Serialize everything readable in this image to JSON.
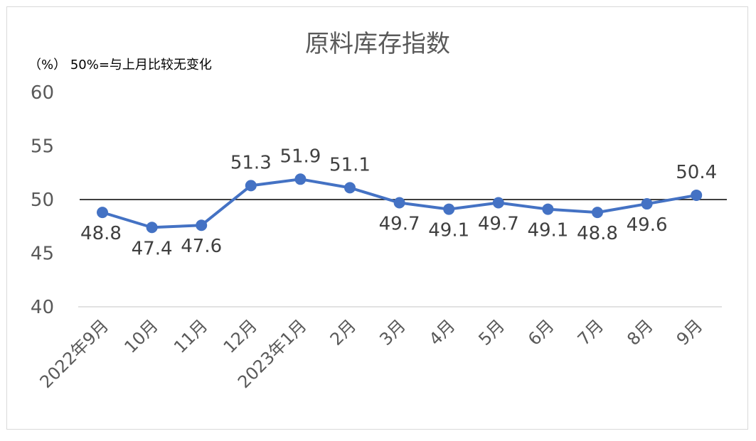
{
  "chart_data": {
    "type": "line",
    "title": "原料库存指数",
    "unit_note": "（%）  50%=与上月比较无变化",
    "categories": [
      "2022年9月",
      "10月",
      "11月",
      "12月",
      "2023年1月",
      "2月",
      "3月",
      "4月",
      "5月",
      "6月",
      "7月",
      "8月",
      "9月"
    ],
    "series": [
      {
        "values": [
          48.8,
          47.4,
          47.6,
          51.3,
          51.9,
          51.1,
          49.7,
          49.1,
          49.7,
          49.1,
          48.8,
          49.6,
          50.4
        ]
      }
    ],
    "data_labels": [
      "48.8",
      "47.4",
      "47.6",
      "51.3",
      "51.9",
      "51.1",
      "49.7",
      "49.1",
      "49.7",
      "49.1",
      "48.8",
      "49.6",
      "50.4"
    ],
    "ylim": [
      40,
      60
    ],
    "yticks": [
      "40",
      "45",
      "50",
      "55",
      "60"
    ],
    "reference_line": 50,
    "grid": false,
    "legend": "none",
    "colors": {
      "series": "#4472c4",
      "reference": "#000000",
      "axis": "#d9d9d9",
      "text": "#595959"
    }
  }
}
